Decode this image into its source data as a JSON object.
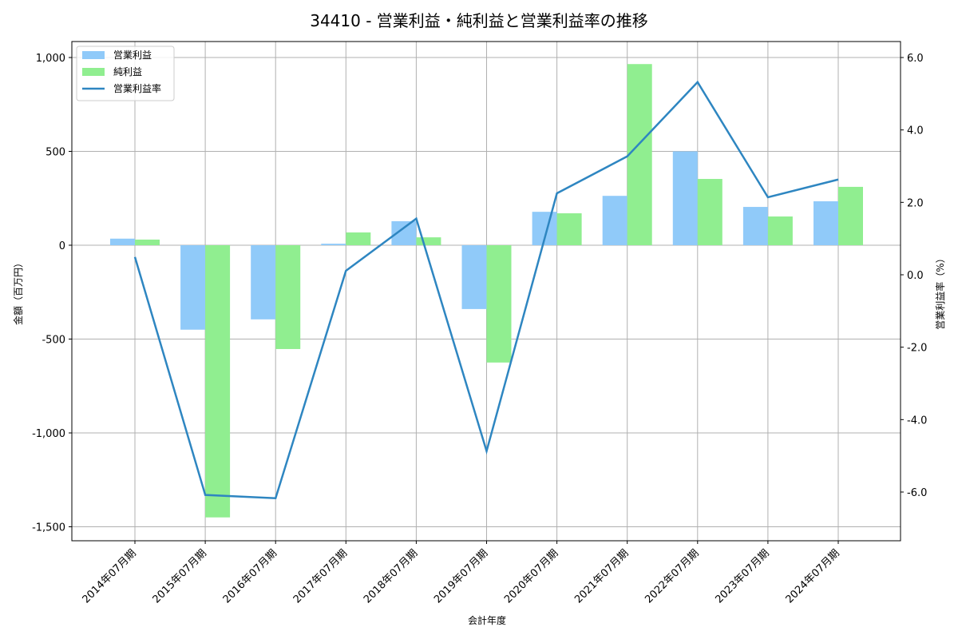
{
  "chart_data": {
    "type": "bar",
    "title": "34410 - 営業利益・純利益と営業利益率の推移",
    "xlabel": "会計年度",
    "ylabel": "金額（百万円）",
    "y2label": "営業利益率（%）",
    "categories": [
      "2014年07月期",
      "2015年07月期",
      "2016年07月期",
      "2017年07月期",
      "2018年07月期",
      "2019年07月期",
      "2020年07月期",
      "2021年07月期",
      "2022年07月期",
      "2023年07月期",
      "2024年07月期"
    ],
    "series": [
      {
        "name": "営業利益",
        "type": "bar",
        "axis": "left",
        "color": "#90CAF9",
        "values": [
          35,
          -450,
          -395,
          8,
          128,
          -340,
          178,
          263,
          500,
          204,
          234
        ]
      },
      {
        "name": "純利益",
        "type": "bar",
        "axis": "left",
        "color": "#90EE90",
        "values": [
          30,
          -1450,
          -553,
          68,
          42,
          -625,
          170,
          965,
          353,
          153,
          311
        ]
      },
      {
        "name": "営業利益率",
        "type": "line",
        "axis": "right",
        "color": "#2E86C1",
        "values": [
          0.49,
          -6.08,
          -6.17,
          0.11,
          1.55,
          -4.87,
          2.25,
          3.27,
          5.32,
          2.14,
          2.63
        ]
      }
    ],
    "ylim": [
      -1570,
      1080
    ],
    "y2lim": [
      -7.3,
      6.2
    ],
    "yticks": [
      -1500,
      -1000,
      -500,
      0,
      500,
      1000
    ],
    "yticklabels": [
      "-1,500",
      "-1,000",
      "-500",
      "0",
      "500",
      "1,000"
    ],
    "y2ticks": [
      -6,
      -4,
      -2,
      0,
      2,
      4,
      6
    ],
    "y2ticklabels": [
      "-6.0",
      "-4.0",
      "-2.0",
      "0.0",
      "2.0",
      "4.0",
      "6.0"
    ],
    "grid": true,
    "legend_position": "upper left"
  }
}
